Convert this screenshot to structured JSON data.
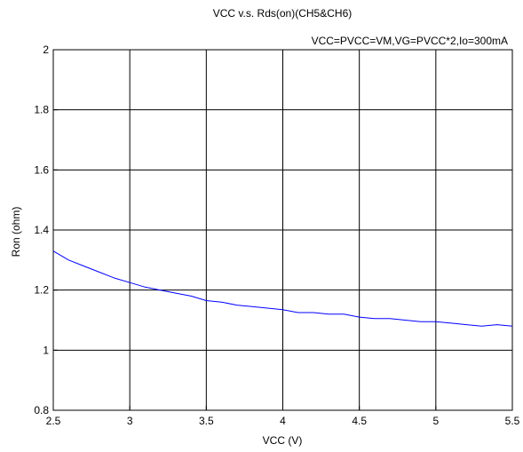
{
  "chart_data": {
    "type": "line",
    "title": "VCC v.s. Rds(on)(CH5&CH6)",
    "annotation": "VCC=PVCC=VM,VG=PVCC*2,Io=300mA",
    "xlabel": "VCC (V)",
    "ylabel": "Ron (ohm)",
    "xlim": [
      2.5,
      5.5
    ],
    "ylim": [
      0.8,
      2.0
    ],
    "xticks": [
      2.5,
      3,
      3.5,
      4,
      4.5,
      5,
      5.5
    ],
    "xtick_labels": [
      "2.5",
      "3",
      "3.5",
      "4",
      "4.5",
      "5",
      "5.5"
    ],
    "yticks": [
      0.8,
      1.0,
      1.2,
      1.4,
      1.6,
      1.8,
      2.0
    ],
    "ytick_labels": [
      "0.8",
      "1",
      "1.2",
      "1.4",
      "1.6",
      "1.8",
      "2"
    ],
    "grid": true,
    "line_color": "#0000ff",
    "series": [
      {
        "x": [
          2.5,
          2.6,
          2.7,
          2.8,
          2.9,
          3.0,
          3.1,
          3.2,
          3.3,
          3.4,
          3.5,
          3.6,
          3.7,
          3.8,
          3.9,
          4.0,
          4.1,
          4.2,
          4.3,
          4.4,
          4.5,
          4.6,
          4.7,
          4.8,
          4.9,
          5.0,
          5.1,
          5.2,
          5.3,
          5.4,
          5.5
        ],
        "y": [
          1.33,
          1.3,
          1.28,
          1.26,
          1.24,
          1.225,
          1.21,
          1.2,
          1.19,
          1.18,
          1.165,
          1.16,
          1.15,
          1.145,
          1.14,
          1.135,
          1.125,
          1.125,
          1.12,
          1.12,
          1.11,
          1.105,
          1.105,
          1.1,
          1.095,
          1.095,
          1.09,
          1.085,
          1.08,
          1.085,
          1.08
        ]
      }
    ]
  }
}
